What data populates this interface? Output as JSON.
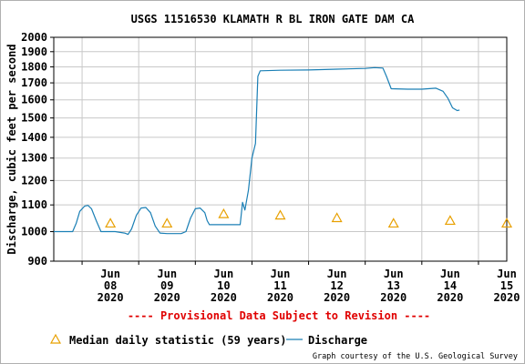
{
  "chart_data": {
    "type": "line",
    "title": "USGS 11516530 KLAMATH R BL IRON GATE DAM CA",
    "ylabel": "Discharge, cubic feet per second",
    "xlabel": "",
    "ylim": [
      900,
      2000
    ],
    "yscale": "log",
    "yticks": [
      900,
      1000,
      1100,
      1200,
      1300,
      1400,
      1500,
      1600,
      1700,
      1800,
      1900,
      2000
    ],
    "xlim": [
      "2020-06-07T12:00",
      "2020-06-15T12:00"
    ],
    "xticks": [
      {
        "x": "2020-06-08",
        "lines": [
          "Jun",
          "08",
          "2020"
        ]
      },
      {
        "x": "2020-06-09",
        "lines": [
          "Jun",
          "09",
          "2020"
        ]
      },
      {
        "x": "2020-06-10",
        "lines": [
          "Jun",
          "10",
          "2020"
        ]
      },
      {
        "x": "2020-06-11",
        "lines": [
          "Jun",
          "11",
          "2020"
        ]
      },
      {
        "x": "2020-06-12",
        "lines": [
          "Jun",
          "12",
          "2020"
        ]
      },
      {
        "x": "2020-06-13",
        "lines": [
          "Jun",
          "13",
          "2020"
        ]
      },
      {
        "x": "2020-06-14",
        "lines": [
          "Jun",
          "14",
          "2020"
        ]
      },
      {
        "x": "2020-06-15",
        "lines": [
          "Jun",
          "15",
          "2020"
        ]
      }
    ],
    "grid": true,
    "legend_position": "bottom",
    "series": [
      {
        "name": "Discharge",
        "color": "#1a7fb5",
        "points": [
          [
            "2020-06-07T12:00",
            1000
          ],
          [
            "2020-06-07T20:00",
            1000
          ],
          [
            "2020-06-07T21:30",
            1030
          ],
          [
            "2020-06-07T23:00",
            1075
          ],
          [
            "2020-06-08T01:00",
            1095
          ],
          [
            "2020-06-08T02:30",
            1098
          ],
          [
            "2020-06-08T04:00",
            1085
          ],
          [
            "2020-06-08T06:00",
            1040
          ],
          [
            "2020-06-08T08:00",
            1000
          ],
          [
            "2020-06-08T14:00",
            1000
          ],
          [
            "2020-06-08T18:00",
            995
          ],
          [
            "2020-06-08T19:30",
            990
          ],
          [
            "2020-06-08T21:00",
            1010
          ],
          [
            "2020-06-08T23:00",
            1060
          ],
          [
            "2020-06-09T01:00",
            1088
          ],
          [
            "2020-06-09T03:00",
            1090
          ],
          [
            "2020-06-09T05:00",
            1070
          ],
          [
            "2020-06-09T07:00",
            1020
          ],
          [
            "2020-06-09T09:00",
            995
          ],
          [
            "2020-06-09T12:00",
            993
          ],
          [
            "2020-06-09T18:00",
            993
          ],
          [
            "2020-06-09T20:00",
            1000
          ],
          [
            "2020-06-09T22:00",
            1050
          ],
          [
            "2020-06-10T00:00",
            1085
          ],
          [
            "2020-06-10T02:00",
            1088
          ],
          [
            "2020-06-10T04:00",
            1070
          ],
          [
            "2020-06-10T05:00",
            1040
          ],
          [
            "2020-06-10T06:00",
            1025
          ],
          [
            "2020-06-10T12:00",
            1025
          ],
          [
            "2020-06-10T19:00",
            1025
          ],
          [
            "2020-06-10T20:00",
            1110
          ],
          [
            "2020-06-10T21:00",
            1080
          ],
          [
            "2020-06-10T22:30",
            1160
          ],
          [
            "2020-06-11T00:00",
            1300
          ],
          [
            "2020-06-11T01:30",
            1370
          ],
          [
            "2020-06-11T02:30",
            1740
          ],
          [
            "2020-06-11T03:30",
            1775
          ],
          [
            "2020-06-11T12:00",
            1778
          ],
          [
            "2020-06-12T00:00",
            1780
          ],
          [
            "2020-06-12T12:00",
            1785
          ],
          [
            "2020-06-13T00:00",
            1790
          ],
          [
            "2020-06-13T04:00",
            1795
          ],
          [
            "2020-06-13T07:30",
            1792
          ],
          [
            "2020-06-13T09:00",
            1740
          ],
          [
            "2020-06-13T11:00",
            1665
          ],
          [
            "2020-06-13T18:00",
            1662
          ],
          [
            "2020-06-14T00:00",
            1662
          ],
          [
            "2020-06-14T06:00",
            1668
          ],
          [
            "2020-06-14T09:00",
            1650
          ],
          [
            "2020-06-14T11:00",
            1610
          ],
          [
            "2020-06-14T13:00",
            1555
          ],
          [
            "2020-06-14T15:00",
            1540
          ],
          [
            "2020-06-14T16:00",
            1543
          ]
        ]
      }
    ],
    "median_statistic": {
      "name": "Median daily statistic (59 years)",
      "color": "#e8a000",
      "marker": "triangle",
      "points": [
        [
          "2020-06-08",
          1030
        ],
        [
          "2020-06-09",
          1030
        ],
        [
          "2020-06-10",
          1065
        ],
        [
          "2020-06-11",
          1060
        ],
        [
          "2020-06-12",
          1050
        ],
        [
          "2020-06-13",
          1030
        ],
        [
          "2020-06-14",
          1040
        ],
        [
          "2020-06-15",
          1030
        ]
      ]
    }
  },
  "provisional_notice": "---- Provisional Data Subject to Revision ----",
  "legend": {
    "median_label": "Median daily statistic (59 years)",
    "discharge_label": "Discharge"
  },
  "credit": "Graph courtesy of the U.S. Geological Survey",
  "colors": {
    "discharge": "#1a7fb5",
    "median": "#e8a000",
    "notice": "#e00000",
    "grid": "#c8c8c8"
  }
}
